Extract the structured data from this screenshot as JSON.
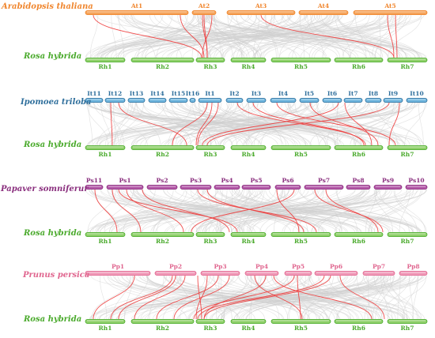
{
  "colors": {
    "arabidopsis": "#f0862e",
    "rosa": "#4aaa2c",
    "ipomoea": "#2f6f9c",
    "papaver": "#8a2f7e",
    "prunus": "#e0668f",
    "grey_links": "#cfcfcf",
    "red_links": "#ee3b3b"
  },
  "panels": [
    {
      "species_top": "Arabidopsis thaliana",
      "species_bottom": "Rosa hybrida",
      "top_color": "#f0862e",
      "top_fill": "#f5a35a",
      "top_chromosomes": [
        "At1",
        "At2",
        "At3",
        "At4",
        "At5"
      ],
      "bottom_chromosomes": [
        "Rh1",
        "Rh2",
        "Rh3",
        "Rh4",
        "Rh5",
        "Rh6",
        "Rh7"
      ]
    },
    {
      "species_top": "Ipomoea triloba",
      "species_bottom": "Rosa hybrida",
      "top_color": "#2f6f9c",
      "top_fill": "#6fb6de",
      "top_chromosomes": [
        "It11",
        "It12",
        "It13",
        "It14",
        "It15",
        "It16",
        "It1",
        "It2",
        "It3",
        "It4",
        "It5",
        "It6",
        "It7",
        "It8",
        "It9",
        "It10"
      ],
      "bottom_chromosomes": [
        "Rh1",
        "Rh2",
        "Rh3",
        "Rh4",
        "Rh5",
        "Rh6",
        "Rh7"
      ]
    },
    {
      "species_top": "Papaver somniferur",
      "species_bottom": "Rosa hybrida",
      "top_color": "#8a2f7e",
      "top_fill": "#b45aa8",
      "top_chromosomes": [
        "Ps11",
        "Ps1",
        "Ps2",
        "Ps3",
        "Ps4",
        "Ps5",
        "Ps6",
        "Ps7",
        "Ps8",
        "Ps9",
        "Ps10"
      ],
      "bottom_chromosomes": [
        "Rh1",
        "Rh2",
        "Rh3",
        "Rh4",
        "Rh5",
        "Rh6",
        "Rh7"
      ]
    },
    {
      "species_top": "Prunus persica",
      "species_bottom": "Rosa hybrida",
      "top_color": "#e0668f",
      "top_fill": "#f09ab8",
      "top_chromosomes": [
        "Pp1",
        "Pp2",
        "Pp3",
        "Pp4",
        "Pp5",
        "Pp6",
        "Pp7",
        "Pp8"
      ],
      "bottom_chromosomes": [
        "Rh1",
        "Rh2",
        "Rh3",
        "Rh4",
        "Rh5",
        "Rh6",
        "Rh7"
      ]
    }
  ]
}
